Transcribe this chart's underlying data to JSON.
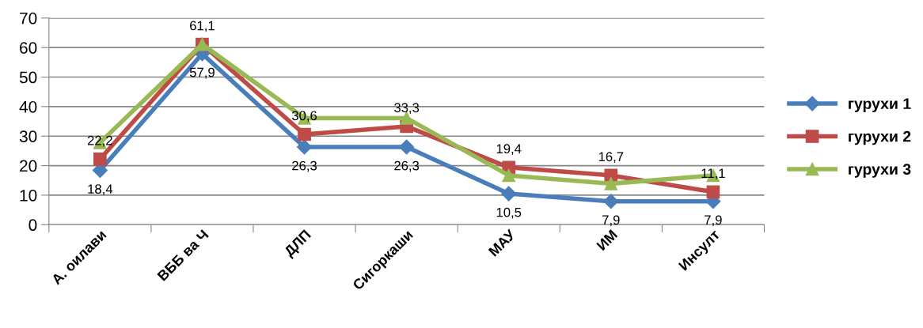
{
  "chart_data": {
    "type": "line",
    "categories": [
      "А. оилави",
      "ВББ ва Ч",
      "ДЛП",
      "Сигоркаши",
      "МАУ",
      "ИМ",
      "Инсулт"
    ],
    "ylim": [
      0,
      70
    ],
    "yticks": [
      0,
      10,
      20,
      30,
      40,
      50,
      60,
      70
    ],
    "grid": "y",
    "legend": "right",
    "line_style": "solid",
    "series": [
      {
        "name": "гурухи 1",
        "color": "#4a7ebb",
        "marker": "diamond",
        "values": [
          18.4,
          57.9,
          26.3,
          26.3,
          10.5,
          7.9,
          7.9
        ],
        "value_labels": [
          "18,4",
          "57,9",
          "26,3",
          "26,3",
          "10,5",
          "7,9",
          "7,9"
        ]
      },
      {
        "name": "гурухи 2",
        "color": "#be4b48",
        "marker": "square",
        "values": [
          22.2,
          61.1,
          30.6,
          33.3,
          19.4,
          16.7,
          11.1
        ],
        "value_labels": [
          "22,2",
          "61,1",
          "30,6",
          "33,3",
          "19,4",
          "16,7",
          "11,1"
        ]
      },
      {
        "name": "гурухи 3",
        "color": "#98b954",
        "marker": "triangle",
        "values": [
          27.8,
          61.1,
          36.1,
          36.1,
          16.7,
          13.9,
          16.7
        ]
      }
    ]
  }
}
